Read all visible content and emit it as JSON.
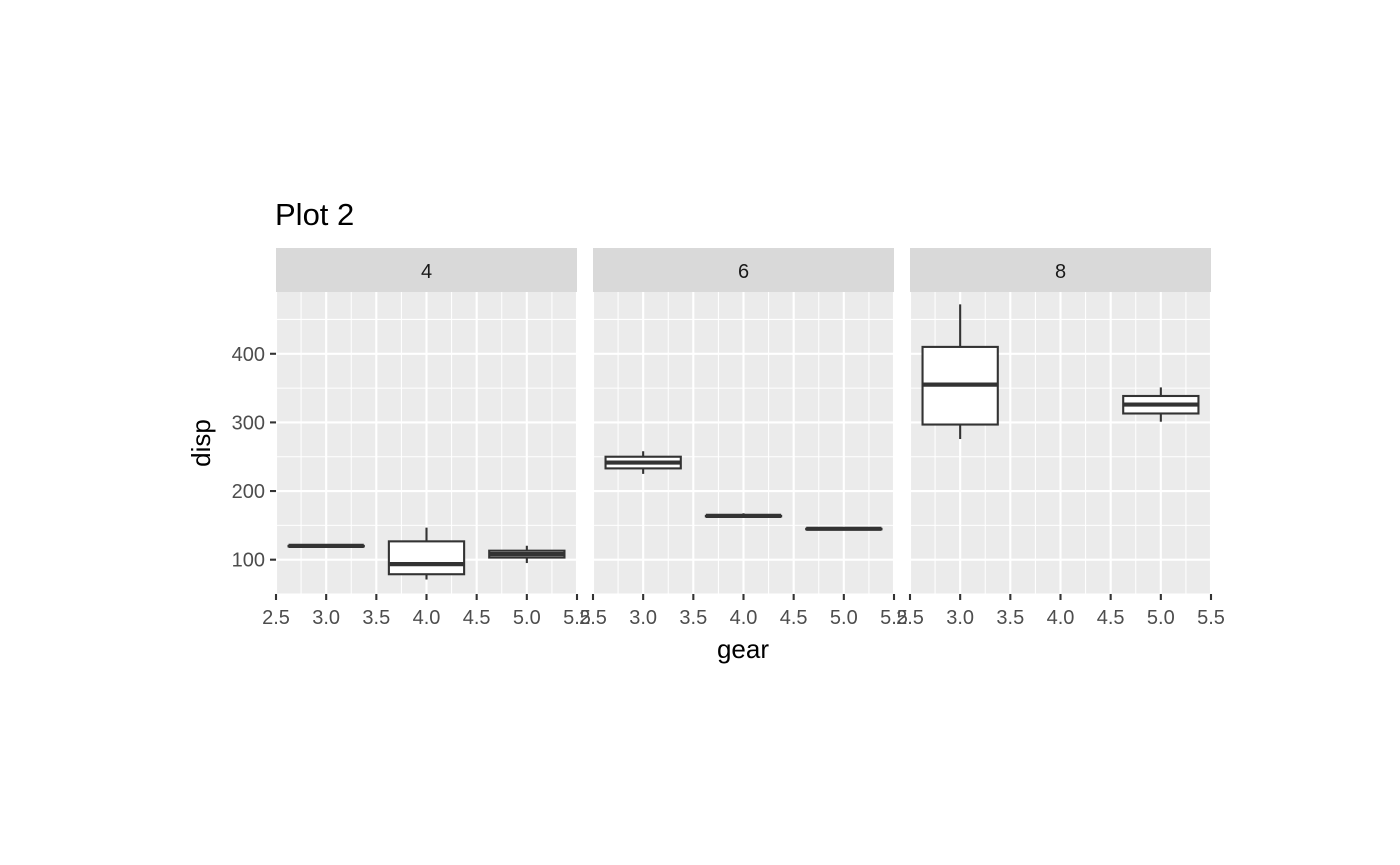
{
  "chart_data": {
    "type": "boxplot",
    "title": "Plot 2",
    "xlabel": "gear",
    "ylabel": "disp",
    "facet_variable_values": [
      "4",
      "6",
      "8"
    ],
    "xlim": [
      2.5,
      5.5
    ],
    "ylim": [
      50,
      490
    ],
    "x_ticks": [
      2.5,
      3.0,
      3.5,
      4.0,
      4.5,
      5.0,
      5.5
    ],
    "x_tick_labels": [
      "2.5",
      "3.0",
      "3.5",
      "4.0",
      "4.5",
      "5.0",
      "5.5"
    ],
    "y_ticks": [
      100,
      200,
      300,
      400
    ],
    "y_tick_labels": [
      "100",
      "200",
      "300",
      "400"
    ],
    "panels": [
      {
        "label": "4",
        "boxes": [
          {
            "x": 3,
            "ymin": 120.1,
            "lower": 120.1,
            "middle": 120.1,
            "upper": 120.1,
            "ymax": 120.1
          },
          {
            "x": 4,
            "ymin": 71.1,
            "lower": 78.8,
            "middle": 93.5,
            "upper": 126.7,
            "ymax": 146.7
          },
          {
            "x": 5,
            "ymin": 95.1,
            "lower": 103.1,
            "middle": 108.1,
            "upper": 113.1,
            "ymax": 120.3
          }
        ]
      },
      {
        "label": "6",
        "boxes": [
          {
            "x": 3,
            "ymin": 225.0,
            "lower": 233.0,
            "middle": 241.5,
            "upper": 250.0,
            "ymax": 258.0
          },
          {
            "x": 4,
            "ymin": 163.8,
            "lower": 163.8,
            "middle": 163.8,
            "upper": 163.8,
            "ymax": 167.6
          },
          {
            "x": 5,
            "ymin": 145.0,
            "lower": 145.0,
            "middle": 145.0,
            "upper": 145.0,
            "ymax": 145.0
          }
        ]
      },
      {
        "label": "8",
        "boxes": [
          {
            "x": 3,
            "ymin": 275.8,
            "lower": 296.9,
            "middle": 355.0,
            "upper": 410.0,
            "ymax": 472.0
          },
          {
            "x": 5,
            "ymin": 301.0,
            "lower": 313.0,
            "middle": 326.0,
            "upper": 338.5,
            "ymax": 351.0
          }
        ]
      }
    ],
    "colors": {
      "panel_background": "#ebebeb",
      "grid": "#ffffff",
      "strip_background": "#d9d9d9",
      "box_outline": "#333333",
      "box_fill": "#ffffff"
    }
  }
}
